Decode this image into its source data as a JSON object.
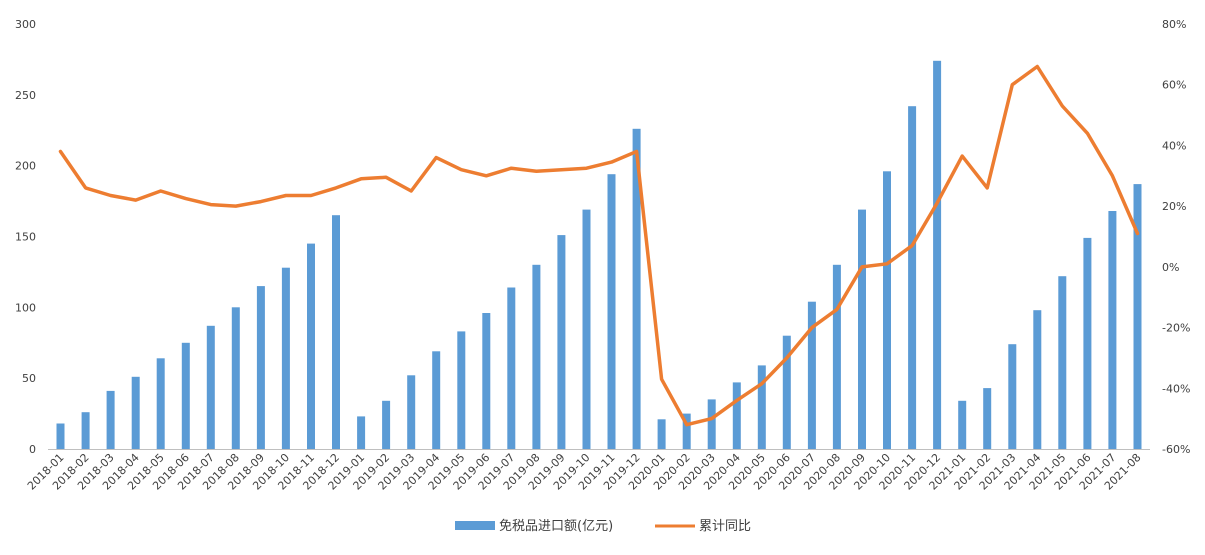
{
  "chart_data": {
    "type": "bar+line",
    "categories": [
      "2018-01",
      "2018-02",
      "2018-03",
      "2018-04",
      "2018-05",
      "2018-06",
      "2018-07",
      "2018-08",
      "2018-09",
      "2018-10",
      "2018-11",
      "2018-12",
      "2019-01",
      "2019-02",
      "2019-03",
      "2019-04",
      "2019-05",
      "2019-06",
      "2019-07",
      "2019-08",
      "2019-09",
      "2019-10",
      "2019-11",
      "2019-12",
      "2020-01",
      "2020-02",
      "2020-03",
      "2020-04",
      "2020-05",
      "2020-06",
      "2020-07",
      "2020-08",
      "2020-09",
      "2020-10",
      "2020-11",
      "2020-12",
      "2021-01",
      "2021-02",
      "2021-03",
      "2021-04",
      "2021-05",
      "2021-06",
      "2021-07",
      "2021-08"
    ],
    "series": [
      {
        "name": "免税品进口额(亿元)",
        "type": "bar",
        "axis": "left",
        "color": "#5B9BD5",
        "values": [
          18,
          26,
          41,
          51,
          64,
          75,
          87,
          100,
          115,
          128,
          145,
          165,
          23,
          34,
          52,
          69,
          83,
          96,
          114,
          130,
          151,
          169,
          194,
          226,
          21,
          25,
          35,
          47,
          59,
          80,
          104,
          130,
          169,
          196,
          242,
          274,
          34,
          43,
          74,
          98,
          122,
          149,
          168,
          187
        ]
      },
      {
        "name": "累计同比",
        "type": "line",
        "axis": "right",
        "color": "#ED7D31",
        "values": [
          38,
          26,
          23.5,
          22,
          25,
          22.5,
          20.5,
          20,
          21.5,
          23.5,
          23.5,
          26,
          29,
          29.5,
          25,
          36,
          32,
          30,
          32.5,
          31.5,
          32,
          32.5,
          34.5,
          38,
          -37,
          -52,
          -50,
          -44,
          -38.5,
          -30,
          -20,
          -14,
          0,
          1,
          7,
          21,
          36.5,
          26,
          60,
          66,
          53,
          44,
          30,
          11
        ]
      }
    ],
    "y_left": {
      "min": 0,
      "max": 300,
      "ticks": [
        "0",
        "50",
        "100",
        "150",
        "200",
        "250",
        "300"
      ]
    },
    "y_right": {
      "min": -60,
      "max": 80,
      "ticks": [
        "-60%",
        "-40%",
        "-20%",
        "0%",
        "20%",
        "40%",
        "60%",
        "80%"
      ]
    },
    "grid": false,
    "legend_position": "bottom"
  }
}
